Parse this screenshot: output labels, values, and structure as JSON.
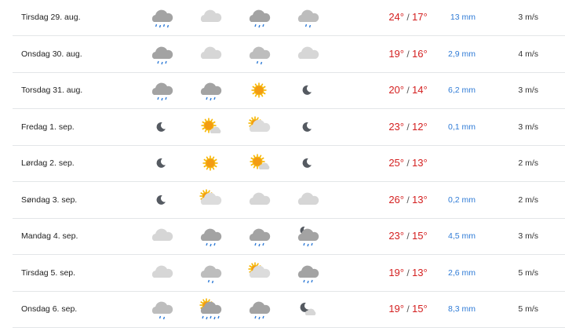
{
  "colors": {
    "temp": "#d42020",
    "precip": "#2f7bd6"
  },
  "rows": [
    {
      "day": "Tirsdag 29. aug.",
      "icons": [
        "heavy-rain",
        "cloud",
        "rain",
        "light-rain"
      ],
      "max": "24°",
      "min": "17°",
      "precip": "13 mm",
      "wind": "3 m/s"
    },
    {
      "day": "Onsdag 30. aug.",
      "icons": [
        "rain",
        "cloud",
        "light-rain",
        "cloud"
      ],
      "max": "19°",
      "min": "16°",
      "precip": "2,9 mm",
      "wind": "4 m/s"
    },
    {
      "day": "Torsdag 31. aug.",
      "icons": [
        "rain",
        "rain",
        "sun",
        "moon"
      ],
      "max": "20°",
      "min": "14°",
      "precip": "6,2 mm",
      "wind": "3 m/s"
    },
    {
      "day": "Fredag 1. sep.",
      "icons": [
        "moon",
        "fair-day",
        "partly-cloudy-day",
        "moon"
      ],
      "max": "23°",
      "min": "12°",
      "precip": "0,1 mm",
      "wind": "3 m/s"
    },
    {
      "day": "Lørdag 2. sep.",
      "icons": [
        "moon",
        "sun",
        "fair-day",
        "moon"
      ],
      "max": "25°",
      "min": "13°",
      "precip": "",
      "wind": "2 m/s"
    },
    {
      "day": "Søndag 3. sep.",
      "icons": [
        "moon",
        "partly-cloudy-day",
        "cloud",
        "cloud"
      ],
      "max": "26°",
      "min": "13°",
      "precip": "0,2 mm",
      "wind": "2 m/s"
    },
    {
      "day": "Mandag 4. sep.",
      "icons": [
        "cloud",
        "rain",
        "rain",
        "moon-cloud-rain"
      ],
      "max": "23°",
      "min": "15°",
      "precip": "4,5 mm",
      "wind": "3 m/s"
    },
    {
      "day": "Tirsdag 5. sep.",
      "icons": [
        "cloud",
        "light-rain",
        "partly-cloudy-day",
        "rain"
      ],
      "max": "19°",
      "min": "13°",
      "precip": "2,6 mm",
      "wind": "5 m/s"
    },
    {
      "day": "Onsdag 6. sep.",
      "icons": [
        "light-rain",
        "sun-cloud-heavy-rain",
        "rain",
        "moon-cloud"
      ],
      "max": "19°",
      "min": "15°",
      "precip": "8,3 mm",
      "wind": "5 m/s"
    }
  ]
}
